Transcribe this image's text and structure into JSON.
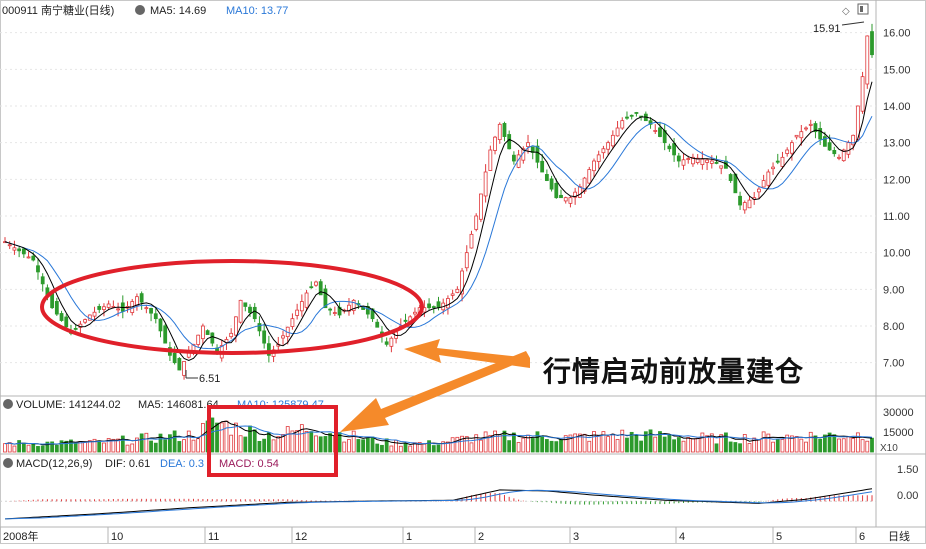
{
  "header": {
    "code": "000911",
    "name": "南宁糖业(日线)",
    "ma5_label": "MA5: 14.69",
    "ma10_label": "MA10: 13.77"
  },
  "volume_panel": {
    "vol_label": "VOLUME: 141244.02",
    "ma5_label": "MA5: 146081.64",
    "ma10_label": "MA10: 125879.47",
    "unit": "X10"
  },
  "macd_panel": {
    "title": "MACD(12,26,9)",
    "dif_label": "DIF: 0.61",
    "dea_label": "DEA: 0.3",
    "macd_label": "MACD: 0.54"
  },
  "annotations": {
    "high": "15.91",
    "low": "6.51",
    "callout": "行情启动前放量建仓"
  },
  "footer": {
    "period": "日线"
  },
  "colors": {
    "up": "#e0393c",
    "down": "#2c9a2c",
    "ma5": "#000000",
    "ma10": "#2a78d8",
    "ellipse": "#e0202a",
    "arrow": "#f58a2a",
    "dea": "#2a78d8",
    "dif": "#000000"
  },
  "chart_data": {
    "type": "candlestick",
    "price_ticks": [
      "16.00",
      "15.00",
      "14.00",
      "13.00",
      "12.00",
      "11.00",
      "10.00",
      "9.00",
      "8.00",
      "7.00"
    ],
    "price_range": [
      6.2,
      16.4
    ],
    "volume_ticks": [
      "30000",
      "15000"
    ],
    "macd_ticks": [
      "1.50",
      "0.00"
    ],
    "x_ticks": [
      "2008年",
      "10",
      "11",
      "12",
      "1",
      "2",
      "3",
      "4",
      "5",
      "6"
    ],
    "close_waypoints": [
      [
        0,
        10.3
      ],
      [
        6,
        9.8
      ],
      [
        10,
        8.5
      ],
      [
        14,
        7.8
      ],
      [
        18,
        8.3
      ],
      [
        22,
        8.6
      ],
      [
        25,
        8.4
      ],
      [
        28,
        8.8
      ],
      [
        32,
        8.2
      ],
      [
        35,
        7.2
      ],
      [
        37,
        6.8
      ],
      [
        40,
        7.5
      ],
      [
        42,
        8.0
      ],
      [
        45,
        7.3
      ],
      [
        48,
        7.8
      ],
      [
        50,
        8.7
      ],
      [
        53,
        8.2
      ],
      [
        56,
        7.2
      ],
      [
        58,
        7.5
      ],
      [
        61,
        8.2
      ],
      [
        64,
        8.9
      ],
      [
        66,
        9.2
      ],
      [
        68,
        8.5
      ],
      [
        71,
        8.3
      ],
      [
        74,
        8.7
      ],
      [
        78,
        8.2
      ],
      [
        81,
        7.5
      ],
      [
        84,
        8.0
      ],
      [
        88,
        8.5
      ],
      [
        92,
        8.5
      ],
      [
        96,
        9.0
      ],
      [
        100,
        11.0
      ],
      [
        103,
        12.8
      ],
      [
        105,
        13.5
      ],
      [
        108,
        12.5
      ],
      [
        111,
        13.0
      ],
      [
        114,
        12.2
      ],
      [
        117,
        11.5
      ],
      [
        120,
        11.5
      ],
      [
        122,
        11.8
      ],
      [
        125,
        12.5
      ],
      [
        128,
        13.0
      ],
      [
        131,
        13.6
      ],
      [
        134,
        13.8
      ],
      [
        137,
        13.5
      ],
      [
        140,
        13.0
      ],
      [
        143,
        12.5
      ],
      [
        146,
        12.6
      ],
      [
        150,
        12.5
      ],
      [
        153,
        12.3
      ],
      [
        156,
        11.3
      ],
      [
        159,
        11.5
      ],
      [
        162,
        12.2
      ],
      [
        165,
        12.6
      ],
      [
        168,
        13.2
      ],
      [
        171,
        13.5
      ],
      [
        174,
        12.9
      ],
      [
        177,
        12.6
      ],
      [
        180,
        13.2
      ],
      [
        182,
        14.8
      ],
      [
        183,
        15.91
      ],
      [
        184,
        15.4
      ]
    ],
    "volume_waypoints": [
      [
        0,
        0.22
      ],
      [
        20,
        0.25
      ],
      [
        30,
        0.35
      ],
      [
        40,
        0.45
      ],
      [
        45,
        0.78
      ],
      [
        50,
        0.6
      ],
      [
        55,
        0.45
      ],
      [
        60,
        0.5
      ],
      [
        65,
        0.65
      ],
      [
        70,
        0.5
      ],
      [
        80,
        0.25
      ],
      [
        90,
        0.22
      ],
      [
        100,
        0.38
      ],
      [
        110,
        0.42
      ],
      [
        120,
        0.38
      ],
      [
        130,
        0.45
      ],
      [
        140,
        0.42
      ],
      [
        150,
        0.35
      ],
      [
        160,
        0.38
      ],
      [
        170,
        0.42
      ],
      [
        180,
        0.45
      ],
      [
        184,
        0.48
      ]
    ],
    "macd_dif_waypoints": [
      [
        0,
        -0.85
      ],
      [
        20,
        -0.6
      ],
      [
        40,
        -0.3
      ],
      [
        60,
        -0.05
      ],
      [
        80,
        0.02
      ],
      [
        95,
        0.05
      ],
      [
        105,
        0.55
      ],
      [
        115,
        0.5
      ],
      [
        125,
        0.3
      ],
      [
        140,
        0.05
      ],
      [
        150,
        -0.02
      ],
      [
        160,
        -0.1
      ],
      [
        170,
        0.1
      ],
      [
        184,
        0.61
      ]
    ]
  }
}
